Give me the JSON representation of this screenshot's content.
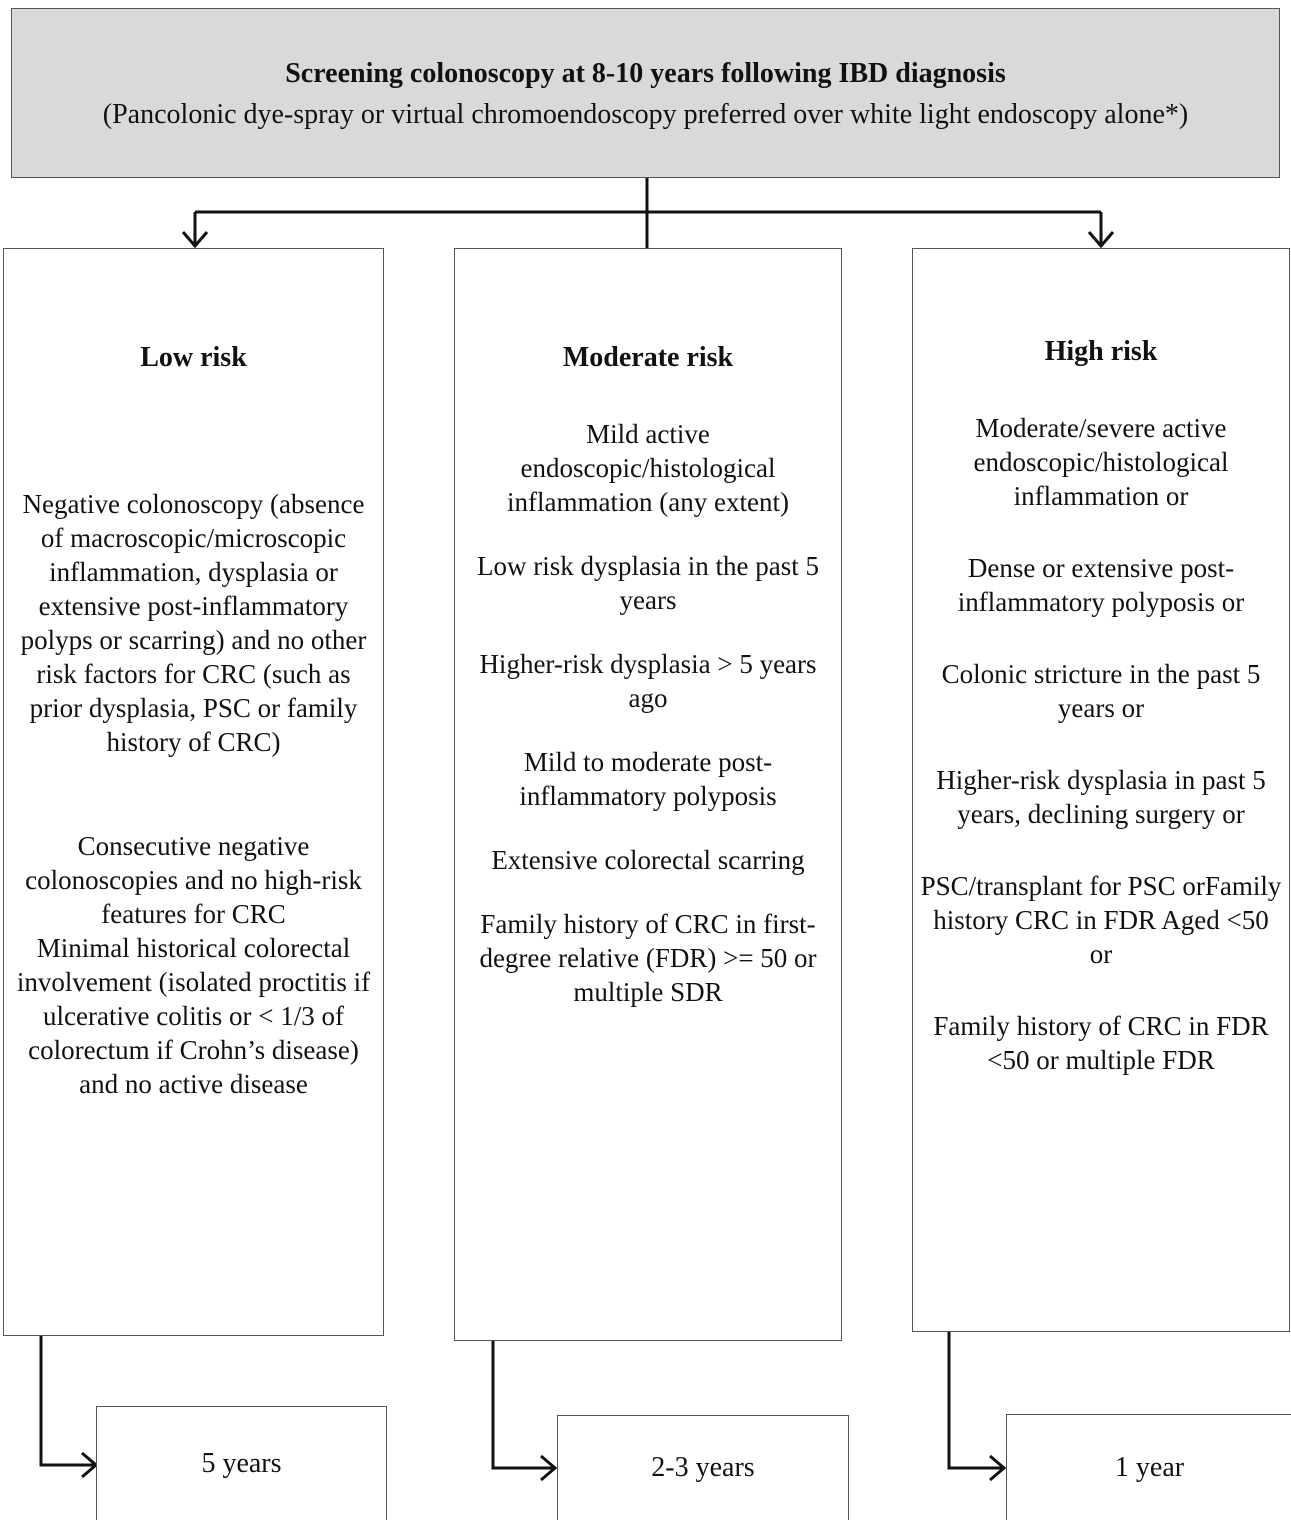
{
  "header": {
    "title": "Screening colonoscopy at 8-10 years following IBD diagnosis",
    "subtitle": "(Pancolonic dye-spray or virtual chromoendoscopy preferred over white light endoscopy alone*)"
  },
  "columns": [
    {
      "title": "Low risk",
      "items": [
        "Negative colonoscopy (absence of macroscopic/microscopic inflammation, dysplasia or extensive post-inflammatory polyps or scarring) and no other risk factors for CRC (such as prior dysplasia, PSC or family history of CRC)",
        "Consecutive negative colonoscopies and no high-risk features for CRC",
        "Minimal historical colorectal involvement (isolated proctitis if ulcerative colitis or < 1/3 of colorectum if Crohn’s disease) and no active disease"
      ],
      "interval": "5 years"
    },
    {
      "title": "Moderate risk",
      "items": [
        "Mild active endoscopic/histological inflammation (any extent)",
        "Low risk dysplasia in the past 5 years",
        "Higher-risk dysplasia > 5 years ago",
        "Mild to moderate post-inflammatory polyposis",
        "Extensive colorectal scarring",
        "Family history of CRC in first-degree relative (FDR) >= 50 or multiple SDR"
      ],
      "interval": "2-3 years"
    },
    {
      "title": "High risk",
      "items": [
        "Moderate/severe active endoscopic/histological inflammation or",
        "Dense or extensive post-inflammatory polyposis or",
        "Colonic stricture in the past 5 years or",
        "Higher-risk dysplasia in past 5 years, declining surgery or",
        "PSC/transplant for PSC orFamily history CRC in FDR Aged <50 or",
        "Family history of CRC in FDR <50 or multiple FDR"
      ],
      "interval": "1 year"
    }
  ]
}
